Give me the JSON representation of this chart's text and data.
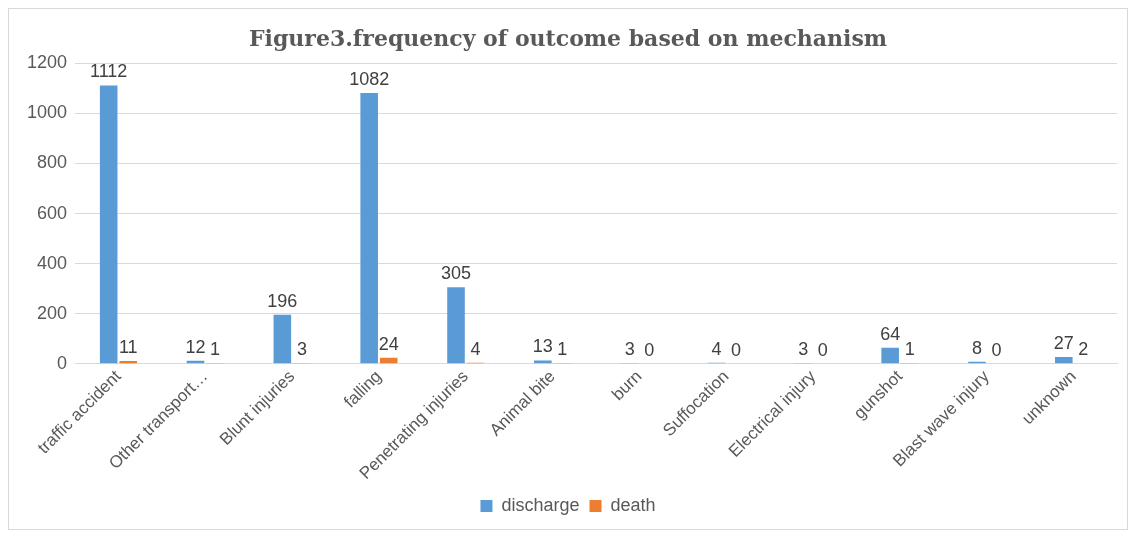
{
  "chart_data": {
    "type": "bar",
    "title": "Figure3.frequency of outcome based on mechanism",
    "categories": [
      "traffic accident",
      "Other transport…",
      "Blunt injuries",
      "falling",
      "Penetrating injuries",
      "Animal bite",
      "burn",
      "Suffocation",
      "Electrical injury",
      "gunshot",
      "Blast wave injury",
      "unknown"
    ],
    "series": [
      {
        "name": "discharge",
        "color": "#5b9bd5",
        "values": [
          1112,
          12,
          196,
          1082,
          305,
          13,
          3,
          4,
          3,
          64,
          8,
          27
        ]
      },
      {
        "name": "death",
        "color": "#ed7d31",
        "values": [
          11,
          1,
          3,
          24,
          4,
          1,
          0,
          0,
          0,
          1,
          0,
          2
        ]
      }
    ],
    "ylim": [
      0,
      1200
    ],
    "yticks": [
      0,
      200,
      400,
      600,
      800,
      1000,
      1200
    ],
    "grid": "y",
    "legend": "bottom",
    "data_labels": true
  }
}
